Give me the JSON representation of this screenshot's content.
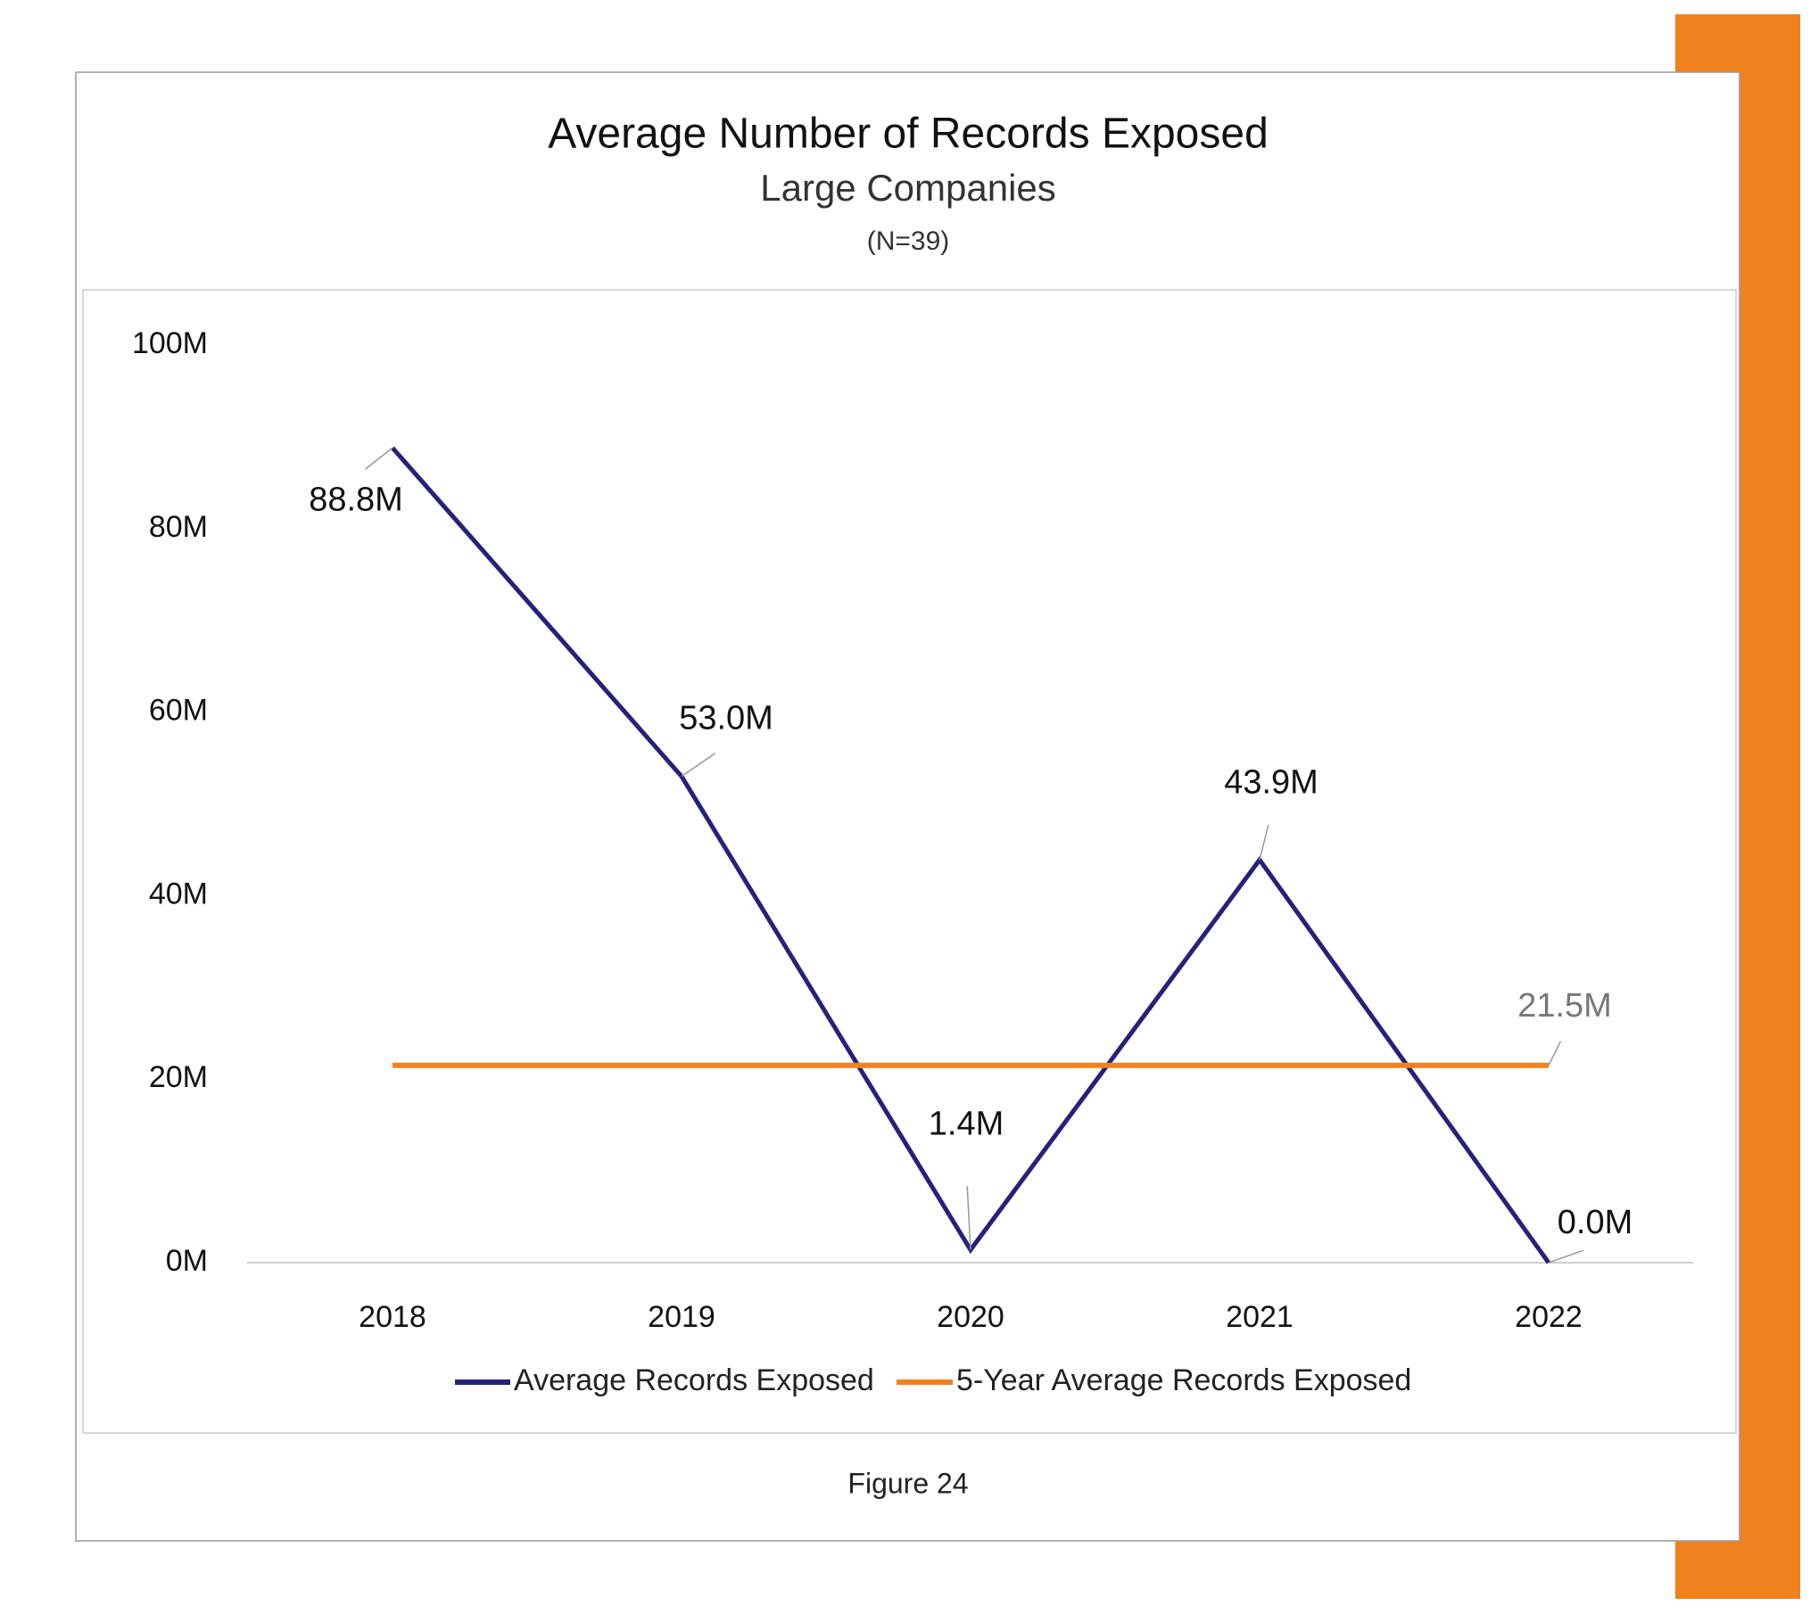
{
  "chart_data": {
    "type": "line",
    "title": "Average Number of Records Exposed",
    "subtitle": "Large Companies",
    "note": "(N=39)",
    "caption": "Figure 24",
    "categories": [
      "2018",
      "2019",
      "2020",
      "2021",
      "2022"
    ],
    "series": [
      {
        "name": "Average Records Exposed",
        "color": "#23237a",
        "values": [
          88800000,
          53000000,
          1400000,
          43900000,
          0
        ],
        "value_labels": [
          "88.8M",
          "53.0M",
          "1.4M",
          "43.9M",
          "0.0M"
        ]
      },
      {
        "name": "5-Year Average Records Exposed",
        "color": "#f0821e",
        "values": [
          21500000,
          21500000,
          21500000,
          21500000,
          21500000
        ],
        "value_labels": [
          null,
          null,
          null,
          null,
          "21.5M"
        ]
      }
    ],
    "ylim": [
      0,
      100000000
    ],
    "yticks": [
      {
        "value": 0,
        "label": "0M"
      },
      {
        "value": 20000000,
        "label": "20M"
      },
      {
        "value": 40000000,
        "label": "40M"
      },
      {
        "value": 60000000,
        "label": "60M"
      },
      {
        "value": 80000000,
        "label": "80M"
      },
      {
        "value": 100000000,
        "label": "100M"
      }
    ],
    "grid": false,
    "legend": "bottom"
  }
}
